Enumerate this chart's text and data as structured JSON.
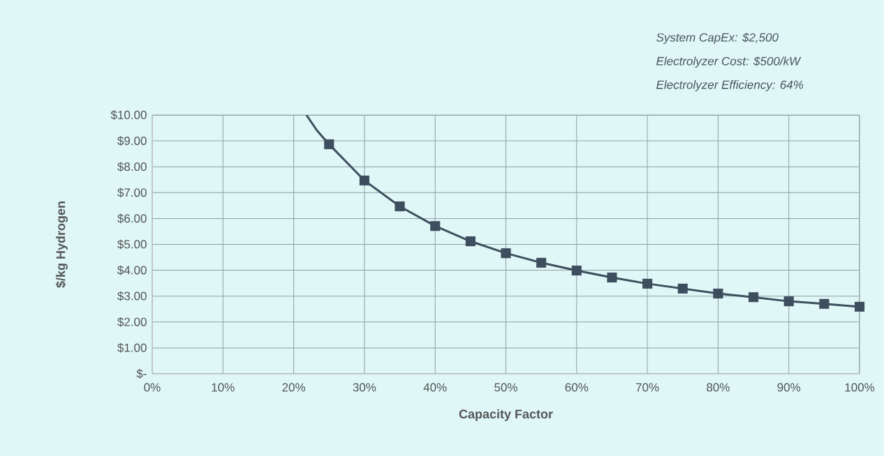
{
  "chart_data": {
    "type": "line",
    "xlabel": "Capacity Factor",
    "ylabel": "$/kg Hydrogen",
    "annotations": [
      "System CapEx: $2,500",
      "Electrolyzer Cost: $500/kW",
      "Electrolyzer Efficiency: 64%"
    ],
    "series": [
      {
        "color": "#3d4f5e",
        "marker": "square",
        "line_style": "solid",
        "x": [
          25,
          30,
          35,
          40,
          45,
          50,
          55,
          60,
          65,
          70,
          75,
          80,
          85,
          90,
          95,
          100
        ],
        "values": [
          8.87,
          7.47,
          6.47,
          5.71,
          5.12,
          4.66,
          4.29,
          3.99,
          3.72,
          3.48,
          3.29,
          3.1,
          2.96,
          2.8,
          2.7,
          2.59
        ]
      },
      {
        "color": "#3d4f5e",
        "marker": "none",
        "line_style": "solid",
        "x": [
          21.8,
          23.3,
          25
        ],
        "values": [
          10,
          9.4,
          8.87
        ]
      }
    ],
    "xlim": [
      0,
      100
    ],
    "ylim": [
      0,
      10
    ],
    "xticks": [
      {
        "value": 0,
        "label": "0%"
      },
      {
        "value": 10,
        "label": "10%"
      },
      {
        "value": 20,
        "label": "20%"
      },
      {
        "value": 30,
        "label": "30%"
      },
      {
        "value": 40,
        "label": "40%"
      },
      {
        "value": 50,
        "label": "50%"
      },
      {
        "value": 60,
        "label": "60%"
      },
      {
        "value": 70,
        "label": "70%"
      },
      {
        "value": 80,
        "label": "80%"
      },
      {
        "value": 90,
        "label": "90%"
      },
      {
        "value": 100,
        "label": "100%"
      }
    ],
    "yticks": [
      {
        "value": 0,
        "label": "$-"
      },
      {
        "value": 1,
        "label": "$1.00"
      },
      {
        "value": 2,
        "label": "$2.00"
      },
      {
        "value": 3,
        "label": "$3.00"
      },
      {
        "value": 4,
        "label": "$4.00"
      },
      {
        "value": 5,
        "label": "$5.00"
      },
      {
        "value": 6,
        "label": "$6.00"
      },
      {
        "value": 7,
        "label": "$7.00"
      },
      {
        "value": 8,
        "label": "$8.00"
      },
      {
        "value": 9,
        "label": "$9.00"
      },
      {
        "value": 10,
        "label": "$10.00"
      }
    ],
    "grid": true
  }
}
